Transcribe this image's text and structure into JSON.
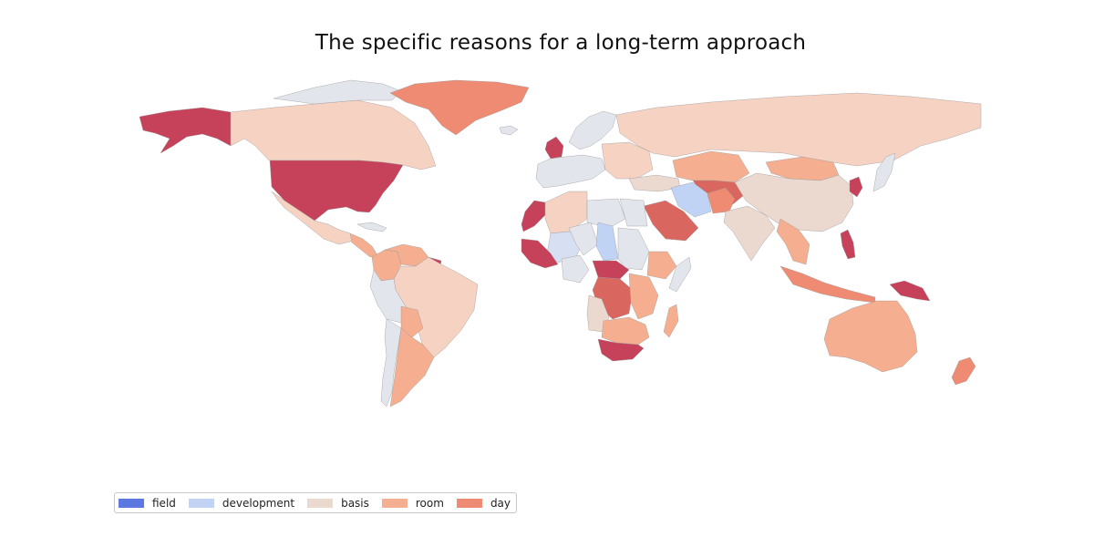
{
  "title": "The specific reasons for a long-term approach",
  "colors": {
    "land_default": "#e2e5ec",
    "land_stroke": "#9a9a9a",
    "field": "#5a78e0",
    "development": "#c0d3f5",
    "basis": "#ebd8cf",
    "room": "#f5ae90",
    "day": "#ee8b72",
    "high": "#d9665f",
    "highest": "#c6415a",
    "peach": "#f6d2c3",
    "light_blue": "#d6e0f2"
  },
  "legend": [
    {
      "label": "field",
      "color_key": "field"
    },
    {
      "label": "development",
      "color_key": "development"
    },
    {
      "label": "basis",
      "color_key": "basis"
    },
    {
      "label": "room",
      "color_key": "room"
    },
    {
      "label": "day",
      "color_key": "day"
    }
  ],
  "regions": [
    {
      "name": "Alaska",
      "color_key": "highest"
    },
    {
      "name": "Canada",
      "color_key": "peach"
    },
    {
      "name": "Arctic islands",
      "color_key": "land_default"
    },
    {
      "name": "Greenland",
      "color_key": "day"
    },
    {
      "name": "United States",
      "color_key": "highest"
    },
    {
      "name": "Mexico",
      "color_key": "peach"
    },
    {
      "name": "Central America",
      "color_key": "room"
    },
    {
      "name": "Cuba",
      "color_key": "land_default"
    },
    {
      "name": "Colombia",
      "color_key": "room"
    },
    {
      "name": "Venezuela",
      "color_key": "room"
    },
    {
      "name": "Guyana",
      "color_key": "highest"
    },
    {
      "name": "Brazil",
      "color_key": "peach"
    },
    {
      "name": "Peru",
      "color_key": "land_default"
    },
    {
      "name": "Bolivia",
      "color_key": "room"
    },
    {
      "name": "Chile",
      "color_key": "land_default"
    },
    {
      "name": "Argentina",
      "color_key": "room"
    },
    {
      "name": "Iceland",
      "color_key": "land_default"
    },
    {
      "name": "United Kingdom",
      "color_key": "highest"
    },
    {
      "name": "Scandinavia",
      "color_key": "land_default"
    },
    {
      "name": "Western Europe",
      "color_key": "land_default"
    },
    {
      "name": "Eastern Europe",
      "color_key": "peach"
    },
    {
      "name": "Russia",
      "color_key": "peach"
    },
    {
      "name": "Kazakhstan",
      "color_key": "room"
    },
    {
      "name": "Central Asia",
      "color_key": "high"
    },
    {
      "name": "Mongolia",
      "color_key": "room"
    },
    {
      "name": "China",
      "color_key": "basis"
    },
    {
      "name": "Korea",
      "color_key": "highest"
    },
    {
      "name": "Japan",
      "color_key": "land_default"
    },
    {
      "name": "Turkey",
      "color_key": "basis"
    },
    {
      "name": "Iran",
      "color_key": "development"
    },
    {
      "name": "Afghanistan",
      "color_key": "day"
    },
    {
      "name": "Saudi Arabia",
      "color_key": "high"
    },
    {
      "name": "India",
      "color_key": "basis"
    },
    {
      "name": "Southeast Asia",
      "color_key": "room"
    },
    {
      "name": "Philippines",
      "color_key": "highest"
    },
    {
      "name": "Indonesia",
      "color_key": "day"
    },
    {
      "name": "Papua New Guinea",
      "color_key": "highest"
    },
    {
      "name": "Australia",
      "color_key": "room"
    },
    {
      "name": "New Zealand",
      "color_key": "day"
    },
    {
      "name": "Morocco",
      "color_key": "highest"
    },
    {
      "name": "Algeria",
      "color_key": "peach"
    },
    {
      "name": "Libya",
      "color_key": "land_default"
    },
    {
      "name": "Egypt",
      "color_key": "land_default"
    },
    {
      "name": "Mali",
      "color_key": "light_blue"
    },
    {
      "name": "Niger",
      "color_key": "land_default"
    },
    {
      "name": "Chad",
      "color_key": "development"
    },
    {
      "name": "Sudan",
      "color_key": "land_default"
    },
    {
      "name": "Ethiopia",
      "color_key": "room"
    },
    {
      "name": "Somalia",
      "color_key": "land_default"
    },
    {
      "name": "West Africa coast",
      "color_key": "highest"
    },
    {
      "name": "Nigeria",
      "color_key": "land_default"
    },
    {
      "name": "Central African Republic",
      "color_key": "highest"
    },
    {
      "name": "DR Congo",
      "color_key": "high"
    },
    {
      "name": "East Africa",
      "color_key": "room"
    },
    {
      "name": "Angola",
      "color_key": "basis"
    },
    {
      "name": "Southern Africa",
      "color_key": "room"
    },
    {
      "name": "South Africa",
      "color_key": "highest"
    },
    {
      "name": "Madagascar",
      "color_key": "room"
    }
  ]
}
